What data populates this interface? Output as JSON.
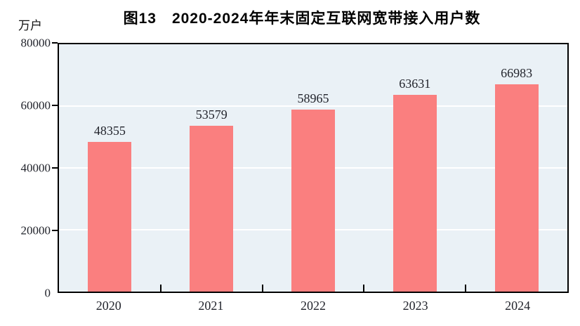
{
  "title": "图13　2020-2024年年末固定互联网宽带接入用户数",
  "y_unit_label": "万户",
  "colors": {
    "bar": "#FA7F7F",
    "plot_background": "#EAF1F6",
    "axis": "#000000",
    "gridline": "#FFFFFF",
    "text": "#22242C"
  },
  "chart_data": {
    "type": "bar",
    "title": "图13　2020-2024年年末固定互联网宽带接入用户数",
    "categories": [
      "2020",
      "2021",
      "2022",
      "2023",
      "2024"
    ],
    "values": [
      48355,
      53579,
      58965,
      63631,
      66983
    ],
    "data_labels": [
      48355,
      53579,
      58965,
      63631,
      66983
    ],
    "xlabel": "",
    "ylabel": "万户",
    "ylim": [
      0,
      80000
    ],
    "yticks": [
      0,
      20000,
      40000,
      60000,
      80000
    ],
    "grid": true,
    "gridline_levels": [
      20000,
      40000,
      60000
    ],
    "legend_position": "none",
    "bar_color": "#FA7F7F"
  }
}
